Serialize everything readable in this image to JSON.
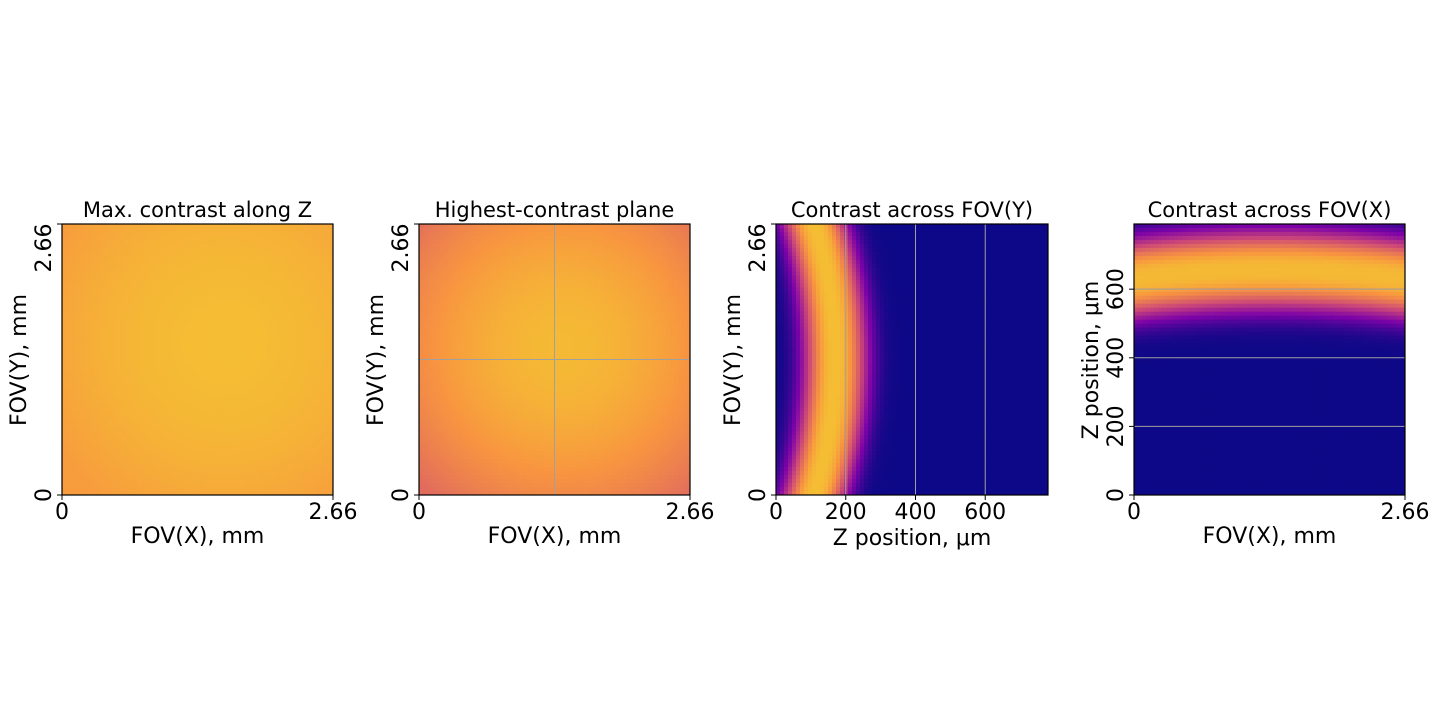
{
  "chart_data": [
    {
      "type": "heatmap",
      "title": "Max. contrast along Z",
      "xlabel": "FOV(X), mm",
      "ylabel": "FOV(Y), mm",
      "xticks": [
        {
          "value": 0,
          "label": "0"
        },
        {
          "value": 2.66,
          "label": "2.66"
        }
      ],
      "yticks": [
        {
          "value": 0,
          "label": "0"
        },
        {
          "value": 2.66,
          "label": "2.66"
        }
      ],
      "xlim": [
        0,
        2.66
      ],
      "ylim": [
        0,
        2.66
      ],
      "colormap": "plasma",
      "grid": false,
      "field": {
        "center": [
          1.6,
          1.5
        ],
        "peak": 0.85,
        "edge": 0.77
      }
    },
    {
      "type": "heatmap",
      "title": "Highest-contrast plane",
      "xlabel": "FOV(X), mm",
      "ylabel": "FOV(Y), mm",
      "xticks": [
        {
          "value": 0,
          "label": "0"
        },
        {
          "value": 2.66,
          "label": "2.66"
        }
      ],
      "yticks": [
        {
          "value": 0,
          "label": "0"
        },
        {
          "value": 2.66,
          "label": "2.66"
        }
      ],
      "xlim": [
        0,
        2.66
      ],
      "ylim": [
        0,
        2.66
      ],
      "colormap": "plasma",
      "grid": true,
      "gridlines_x": [
        1.33
      ],
      "gridlines_y": [
        1.33
      ],
      "field": {
        "center": [
          1.4,
          1.45
        ],
        "peak": 0.84,
        "edge": 0.62
      }
    },
    {
      "type": "heatmap",
      "title": "Contrast across FOV(Y)",
      "xlabel": "Z position, μm",
      "ylabel": "FOV(Y), mm",
      "xticks": [
        {
          "value": 0,
          "label": "0"
        },
        {
          "value": 200,
          "label": "200"
        },
        {
          "value": 400,
          "label": "400"
        },
        {
          "value": 600,
          "label": "600"
        }
      ],
      "yticks": [
        {
          "value": 0,
          "label": "0"
        },
        {
          "value": 2.66,
          "label": "2.66"
        }
      ],
      "xlim": [
        0,
        780
      ],
      "ylim": [
        0,
        2.66
      ],
      "colormap": "plasma",
      "grid": true,
      "gridlines_x": [
        200,
        400,
        600
      ],
      "band": {
        "axis": "x",
        "center_at_mid": 170,
        "center_at_edges": 110,
        "width": 95,
        "peak": 0.85
      }
    },
    {
      "type": "heatmap",
      "title": "Contrast across FOV(X)",
      "xlabel": "FOV(X), mm",
      "ylabel": "Z position, μm",
      "xticks": [
        {
          "value": 0,
          "label": "0"
        },
        {
          "value": 2.66,
          "label": "2.66"
        }
      ],
      "yticks": [
        {
          "value": 0,
          "label": "0"
        },
        {
          "value": 200,
          "label": "200"
        },
        {
          "value": 400,
          "label": "400"
        },
        {
          "value": 600,
          "label": "600"
        }
      ],
      "xlim": [
        0,
        2.66
      ],
      "ylim": [
        0,
        790
      ],
      "colormap": "plasma",
      "grid": true,
      "gridlines_y": [
        200,
        400,
        600
      ],
      "band": {
        "axis": "y",
        "center_at_mid": 655,
        "center_at_edges": 630,
        "width": 120,
        "peak": 0.84
      }
    }
  ]
}
